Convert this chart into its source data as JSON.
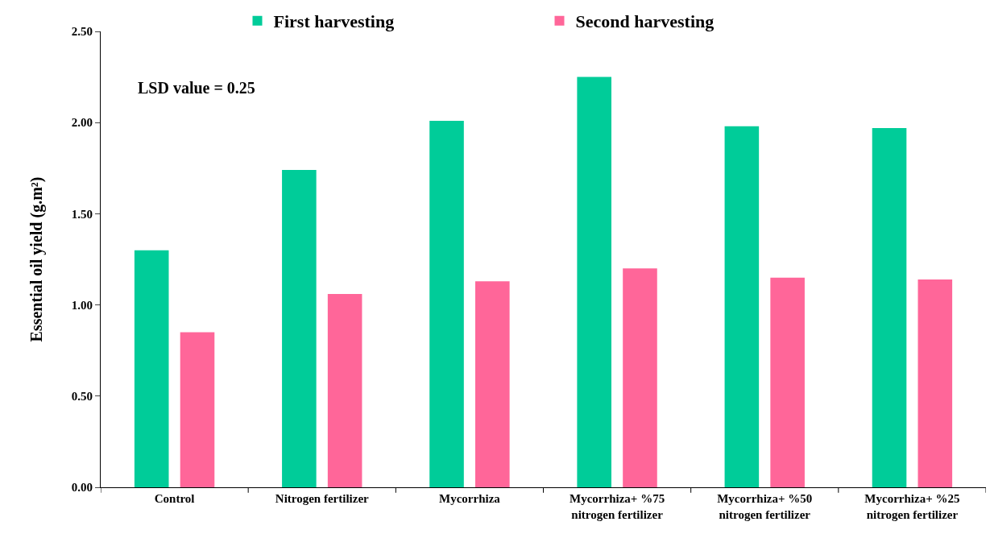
{
  "chart_data": {
    "type": "bar",
    "ylabel": "Essential oil yield (g.m²)",
    "categories": [
      "Control",
      "Nitrogen fertilizer",
      "Mycorrhiza",
      "Mycorrhiza+ %75\nnitrogen fertilizer",
      "Mycorrhiza+ %50\nnitrogen fertilizer",
      "Mycorrhiza+ %25\nnitrogen fertilizer"
    ],
    "series": [
      {
        "name": "First harvesting",
        "color": "#00cc99",
        "values": [
          1.3,
          1.74,
          2.01,
          2.25,
          1.98,
          1.97
        ]
      },
      {
        "name": "Second harvesting",
        "color": "#ff6699",
        "values": [
          0.85,
          1.06,
          1.13,
          1.2,
          1.15,
          1.14
        ]
      }
    ],
    "ylim": [
      0,
      2.5
    ],
    "yticks": [
      {
        "value": 0,
        "label": "0.00"
      },
      {
        "value": 0.5,
        "label": "0.50"
      },
      {
        "value": 1,
        "label": "1.00"
      },
      {
        "value": 1.5,
        "label": "1.50"
      },
      {
        "value": 2,
        "label": "2.00"
      },
      {
        "value": 2.5,
        "label": "2.50"
      }
    ],
    "annotations": [
      "LSD value = 0.25"
    ],
    "legend": "top"
  }
}
